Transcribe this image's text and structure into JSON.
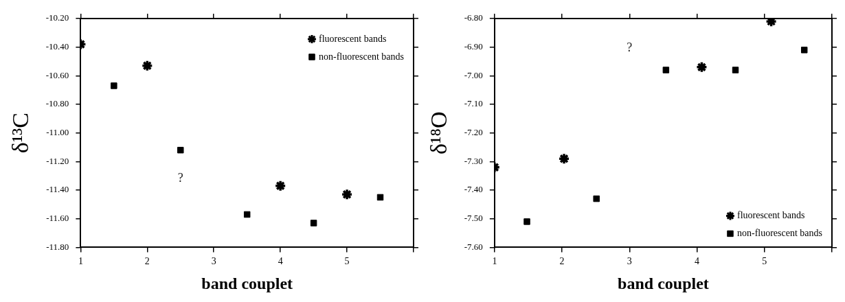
{
  "chart_data": [
    {
      "type": "scatter",
      "xlabel": "band couplet",
      "ylabel": "δ¹³C",
      "xlim": [
        1,
        6
      ],
      "xticks": [
        1,
        2,
        3,
        4,
        5,
        {
          "value": 6,
          "label": null
        }
      ],
      "ylim": [
        -11.8,
        -10.2
      ],
      "yticks": [
        {
          "value": -11.8,
          "label": "-11.80"
        },
        {
          "value": -11.6,
          "label": "-11.60"
        },
        {
          "value": -11.4,
          "label": "-11.40"
        },
        {
          "value": -11.2,
          "label": "-11.20"
        },
        {
          "value": -11,
          "label": "-11.00"
        },
        {
          "value": -10.8,
          "label": "-10.80"
        },
        {
          "value": -10.6,
          "label": "-10.60"
        },
        {
          "value": -10.4,
          "label": "-10.40"
        },
        {
          "value": -10.2,
          "label": "-10.20"
        }
      ],
      "legend": "top right",
      "grid": false,
      "series": [
        {
          "name": "fluorescent bands",
          "color": "#000000",
          "marker": "cross",
          "x": [
            1,
            2,
            4,
            5
          ],
          "values": [
            -10.38,
            -10.53,
            -11.37,
            -11.43
          ]
        },
        {
          "name": "non-fluorescent bands",
          "color": "#000000",
          "marker": "square",
          "x": [
            1.5,
            2.5,
            3.5,
            4.5,
            5.5
          ],
          "values": [
            -10.67,
            -11.12,
            -11.57,
            -11.63,
            -11.45
          ]
        }
      ],
      "annotations": [
        "?"
      ]
    },
    {
      "type": "scatter",
      "xlabel": "band couplet",
      "ylabel": "δ¹⁸O",
      "xlim": [
        1,
        6
      ],
      "xticks": [
        1,
        2,
        3,
        4,
        5,
        {
          "value": 6,
          "label": null
        }
      ],
      "ylim": [
        -7.6,
        -6.8
      ],
      "yticks": [
        {
          "value": -7.6,
          "label": "-7.60"
        },
        {
          "value": -7.5,
          "label": "-7.50"
        },
        {
          "value": -7.4,
          "label": "-7.40"
        },
        {
          "value": -7.3,
          "label": "-7.30"
        },
        {
          "value": -7.2,
          "label": "-7.20"
        },
        {
          "value": -7.1,
          "label": "-7.10"
        },
        {
          "value": -7,
          "label": "-7.00"
        },
        {
          "value": -6.9,
          "label": "-6.90"
        },
        {
          "value": -6.8,
          "label": "-6.80"
        }
      ],
      "legend": "bottom right",
      "grid": false,
      "series": [
        {
          "name": "fluorescent bands",
          "color": "#000000",
          "marker": "cross",
          "x": [
            1,
            2.03,
            4.07,
            5.1
          ],
          "values": [
            -7.32,
            -7.29,
            -6.97,
            -6.81
          ]
        },
        {
          "name": "non-fluorescent bands",
          "color": "#000000",
          "marker": "square",
          "x": [
            1.48,
            2.51,
            3.54,
            4.57,
            5.59
          ],
          "values": [
            -7.51,
            -7.43,
            -6.98,
            -6.98,
            -6.91
          ]
        }
      ],
      "annotations": [
        "?"
      ]
    }
  ]
}
